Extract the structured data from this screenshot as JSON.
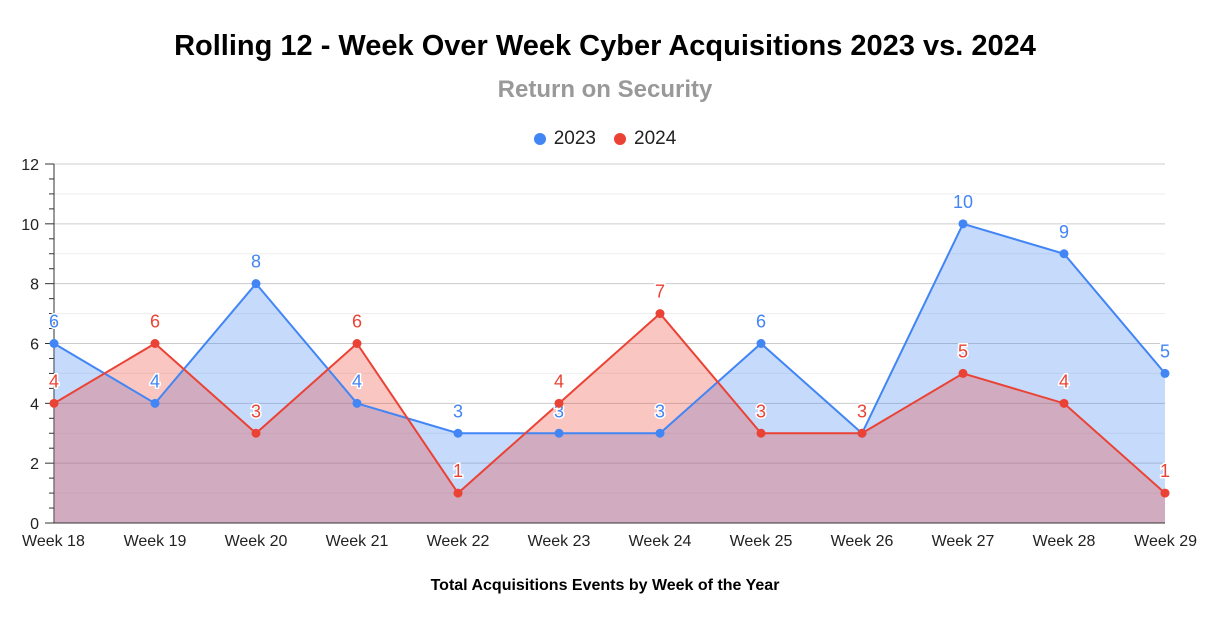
{
  "chart_data": {
    "type": "area",
    "title": "Rolling 12 - Week Over Week Cyber Acquisitions 2023 vs. 2024",
    "subtitle": "Return on Security",
    "xlabel": "Total Acquisitions Events by Week of the Year",
    "ylabel": "",
    "categories": [
      "Week 18",
      "Week 19",
      "Week 20",
      "Week 21",
      "Week 22",
      "Week 23",
      "Week 24",
      "Week 25",
      "Week 26",
      "Week 27",
      "Week 28",
      "Week 29"
    ],
    "ylim": [
      0,
      12
    ],
    "yticks": [
      0,
      2,
      4,
      6,
      8,
      10,
      12
    ],
    "grid": true,
    "legend_position": "top",
    "series": [
      {
        "name": "2023",
        "color": "#4285f4",
        "fill": "#c5d9f8",
        "values": [
          6,
          4,
          8,
          4,
          3,
          3,
          3,
          6,
          3,
          10,
          9,
          5
        ]
      },
      {
        "name": "2024",
        "color": "#ea4335",
        "fill": "#f6c1bd",
        "values": [
          4,
          6,
          3,
          6,
          1,
          4,
          7,
          3,
          3,
          5,
          4,
          1
        ]
      }
    ]
  }
}
